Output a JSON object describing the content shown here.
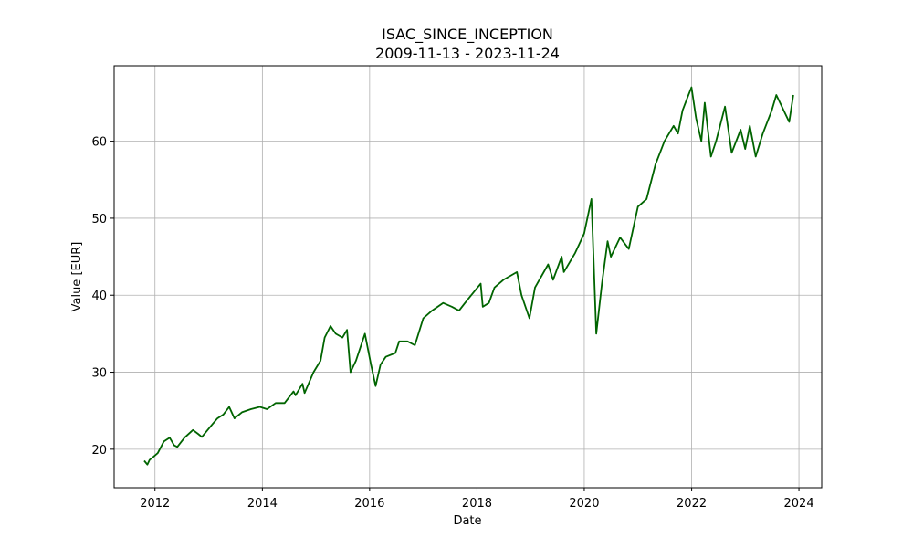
{
  "chart_data": {
    "type": "line",
    "title": "ISAC_SINCE_INCEPTION",
    "subtitle": "2009-11-13 - 2023-11-24",
    "xlabel": "Date",
    "ylabel": "Value [EUR]",
    "xlim": [
      "2011-03-29",
      "2024-06-04"
    ],
    "ylim": [
      15,
      69.8
    ],
    "x_ticks": [
      "2012-01-01",
      "2014-01-01",
      "2016-01-01",
      "2018-01-01",
      "2020-01-01",
      "2022-01-01",
      "2024-01-01"
    ],
    "x_tick_labels": [
      "2012",
      "2014",
      "2016",
      "2018",
      "2020",
      "2022",
      "2024"
    ],
    "y_ticks": [
      20,
      30,
      40,
      50,
      60
    ],
    "y_tick_labels": [
      "20",
      "30",
      "40",
      "50",
      "60"
    ],
    "grid": true,
    "line_color": "#006400",
    "series": [
      {
        "x": [
          "2011-10-20",
          "2011-11-10",
          "2011-11-25",
          "2011-12-15",
          "2012-01-20",
          "2012-03-01",
          "2012-04-10",
          "2012-05-10",
          "2012-06-01",
          "2012-07-20",
          "2012-09-15",
          "2012-10-20",
          "2012-11-15",
          "2013-01-15",
          "2013-03-01",
          "2013-04-10",
          "2013-05-20",
          "2013-06-25",
          "2013-08-15",
          "2013-10-15",
          "2013-12-15",
          "2014-02-01",
          "2014-04-01",
          "2014-06-01",
          "2014-08-01",
          "2014-08-15",
          "2014-10-01",
          "2014-10-15",
          "2014-12-15",
          "2015-02-01",
          "2015-03-01",
          "2015-04-10",
          "2015-05-15",
          "2015-06-30",
          "2015-07-31",
          "2015-08-24",
          "2015-09-30",
          "2015-11-30",
          "2016-01-10",
          "2016-02-11",
          "2016-03-15",
          "2016-04-20",
          "2016-06-24",
          "2016-07-20",
          "2016-09-15",
          "2016-11-04",
          "2016-12-31",
          "2017-03-01",
          "2017-05-15",
          "2017-07-15",
          "2017-09-01",
          "2017-11-01",
          "2018-01-26",
          "2018-02-09",
          "2018-03-23",
          "2018-04-30",
          "2018-06-30",
          "2018-09-30",
          "2018-10-31",
          "2018-12-24",
          "2019-01-31",
          "2019-04-30",
          "2019-06-03",
          "2019-07-31",
          "2019-08-15",
          "2019-10-31",
          "2019-12-31",
          "2020-02-19",
          "2020-03-23",
          "2020-04-30",
          "2020-06-08",
          "2020-06-30",
          "2020-09-01",
          "2020-10-30",
          "2020-12-31",
          "2021-02-28",
          "2021-04-30",
          "2021-06-30",
          "2021-08-31",
          "2021-09-30",
          "2021-10-31",
          "2021-11-30",
          "2021-12-31",
          "2022-01-31",
          "2022-03-08",
          "2022-03-31",
          "2022-05-12",
          "2022-06-16",
          "2022-08-16",
          "2022-09-30",
          "2022-11-30",
          "2022-12-31",
          "2023-02-01",
          "2023-03-13",
          "2023-04-30",
          "2023-06-30",
          "2023-07-31",
          "2023-10-27",
          "2023-11-24"
        ],
        "values": [
          18.5,
          18.0,
          18.6,
          18.9,
          19.5,
          21.0,
          21.5,
          20.5,
          20.3,
          21.5,
          22.5,
          22.0,
          21.6,
          23.0,
          24.0,
          24.5,
          25.5,
          24.0,
          24.8,
          25.2,
          25.5,
          25.2,
          26.0,
          26.0,
          27.5,
          27.0,
          28.5,
          27.3,
          30.0,
          31.5,
          34.5,
          36.0,
          35.0,
          34.5,
          35.5,
          30.0,
          31.5,
          35.0,
          31.0,
          28.2,
          31.0,
          32.0,
          32.5,
          34.0,
          34.0,
          33.5,
          37.0,
          38.0,
          39.0,
          38.5,
          38.0,
          39.5,
          41.5,
          38.5,
          39.0,
          41.0,
          42.0,
          43.0,
          40.0,
          37.0,
          41.0,
          44.0,
          42.0,
          45.0,
          43.0,
          45.5,
          48.0,
          52.5,
          35.0,
          41.5,
          47.0,
          45.0,
          47.5,
          46.0,
          51.5,
          52.5,
          57.0,
          60.0,
          62.0,
          61.0,
          64.0,
          65.5,
          67.0,
          63.0,
          60.0,
          65.0,
          58.0,
          60.0,
          64.5,
          58.5,
          61.5,
          59.0,
          62.0,
          58.0,
          61.0,
          64.0,
          66.0,
          62.5,
          66.0
        ]
      }
    ]
  }
}
